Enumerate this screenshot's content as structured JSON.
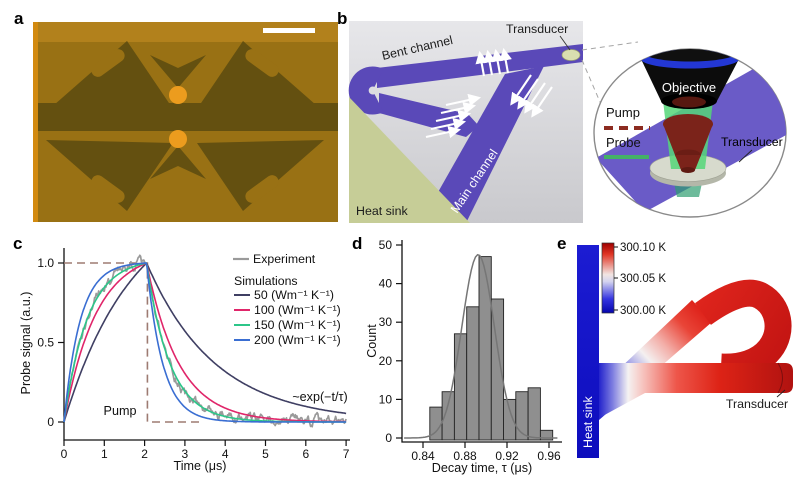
{
  "panels": {
    "a": {
      "label": "a"
    },
    "b": {
      "label": "b",
      "labels": {
        "bent_channel": "Bent channel",
        "transducer": "Transducer",
        "main_channel": "Main channel",
        "heat_sink": "Heat sink"
      },
      "inset": {
        "objective": "Objective",
        "pump": "Pump",
        "probe": "Probe",
        "transducer": "Transducer"
      }
    },
    "c": {
      "label": "c",
      "pump_label": "Pump",
      "annotation": "~exp(−t/τ)"
    },
    "d": {
      "label": "d"
    },
    "e": {
      "label": "e",
      "colorbar": [
        "300.10 K",
        "300.05 K",
        "300.00 K"
      ],
      "heat_sink": "Heat sink",
      "transducer": "Transducer"
    }
  },
  "chart_data": [
    {
      "type": "line",
      "xlabel": "Time (μs)",
      "ylabel": "Probe signal (a.u.)",
      "xlim": [
        0,
        7
      ],
      "ylim": [
        -0.12,
        1.08
      ],
      "xticks": [
        0,
        1,
        2,
        3,
        4,
        5,
        6,
        7
      ],
      "yticks": [
        {
          "v": 1,
          "label": "1.0"
        },
        {
          "v": 0.5,
          "label": "0.5"
        },
        {
          "v": 0,
          "label": "0"
        }
      ],
      "legend_header": "Simulations",
      "peak_time_us": 2.05,
      "pump": {
        "label": "Pump",
        "color": "#9d7b72",
        "high": 1.0,
        "t_on": 0,
        "t_off": 2.07,
        "tail_end": 3.4
      },
      "annotation": "~exp(−t/τ)",
      "series": [
        {
          "name": "Experiment",
          "color": "#9a9a9a",
          "tau_us": 0.57,
          "noise": 0.02
        },
        {
          "name": "50 (Wm⁻¹ K⁻¹)",
          "color": "#3f3f63",
          "tau_us": 1.7
        },
        {
          "name": "100 (Wm⁻¹ K⁻¹)",
          "color": "#e0266a",
          "tau_us": 0.8
        },
        {
          "name": "150 (Wm⁻¹ K⁻¹)",
          "color": "#2cc689",
          "tau_us": 0.58
        },
        {
          "name": "200 (Wm⁻¹ K⁻¹)",
          "color": "#3a6ed2",
          "tau_us": 0.4
        }
      ]
    },
    {
      "type": "histogram",
      "xlabel": "Decay time, τ (μs)",
      "ylabel": "Count",
      "xticks": [
        0.84,
        0.88,
        0.92,
        0.96
      ],
      "yticks": [
        0,
        10,
        20,
        30,
        40,
        50
      ],
      "bin_start": 0.8465,
      "bin_width": 0.0117,
      "counts": [
        8,
        12,
        27,
        34,
        47,
        36,
        10,
        12,
        13,
        2
      ],
      "bar_color": "#8f8f8f",
      "bar_edge": "#222222",
      "fit": {
        "type": "gaussian",
        "amplitude": 47.5,
        "mean": 0.8925,
        "sigma": 0.0155,
        "color": "#767676"
      }
    }
  ]
}
